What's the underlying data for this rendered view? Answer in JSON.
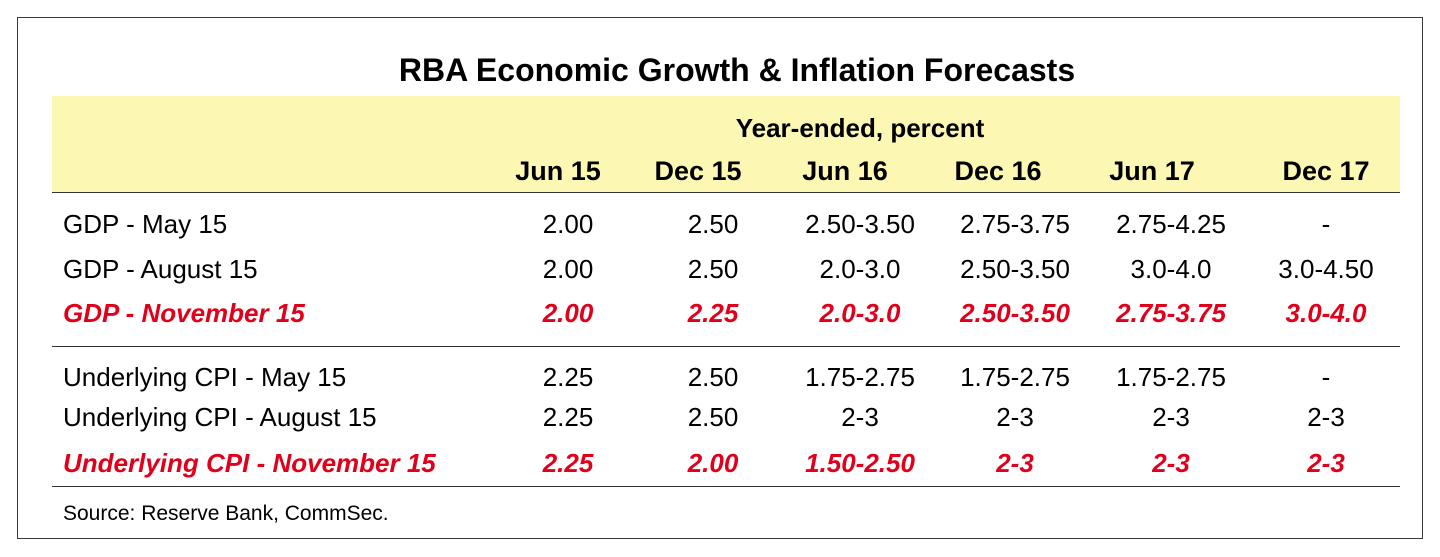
{
  "title": "RBA Economic Growth & Inflation Forecasts",
  "subheader": "Year-ended, percent",
  "columns": [
    "Jun 15",
    "Dec 15",
    "Jun 16",
    "Dec 16",
    "Jun 17",
    "Dec 17"
  ],
  "rows": [
    {
      "label": "GDP - May 15",
      "values": [
        "2.00",
        "2.50",
        "2.50-3.50",
        "2.75-3.75",
        "2.75-4.25",
        "-"
      ]
    },
    {
      "label": "GDP - August 15",
      "values": [
        "2.00",
        "2.50",
        "2.0-3.0",
        "2.50-3.50",
        "3.0-4.0",
        "3.0-4.50"
      ]
    },
    {
      "label": "GDP - November 15",
      "values": [
        "2.00",
        "2.25",
        "2.0-3.0",
        "2.50-3.50",
        "2.75-3.75",
        "3.0-4.0"
      ]
    },
    {
      "label": "Underlying CPI - May 15",
      "values": [
        "2.25",
        "2.50",
        "1.75-2.75",
        "1.75-2.75",
        "1.75-2.75",
        "-"
      ]
    },
    {
      "label": "Underlying CPI - August 15",
      "values": [
        "2.25",
        "2.50",
        "2-3",
        "2-3",
        "2-3",
        "2-3"
      ]
    },
    {
      "label": "Underlying CPI - November 15",
      "values": [
        "2.25",
        "2.00",
        "1.50-2.50",
        "2-3",
        "2-3",
        "2-3"
      ]
    }
  ],
  "highlight_color": "#e0001b",
  "header_band_color": "#fcf8b3",
  "source": "Source: Reserve Bank, CommSec."
}
